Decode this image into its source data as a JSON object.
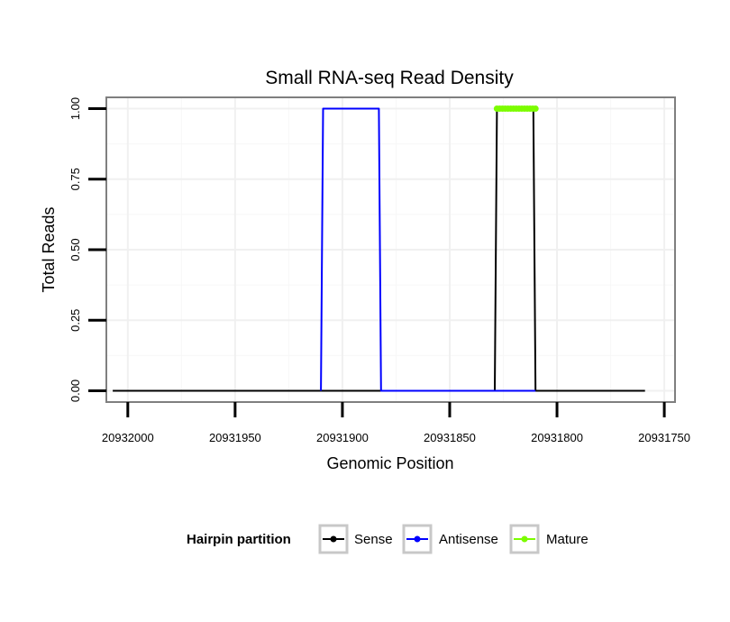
{
  "chart_data": {
    "type": "line",
    "title": "Small RNA-seq Read Density",
    "xlabel": "Genomic Position",
    "ylabel": "Total Reads",
    "x_reversed": true,
    "xlim": [
      20932010,
      20931745
    ],
    "ylim": [
      -0.04,
      1.04
    ],
    "x_ticks": [
      20932000,
      20931950,
      20931900,
      20931850,
      20931800,
      20931750
    ],
    "x_tick_labels": [
      "20932000",
      "20931950",
      "20931900",
      "20931850",
      "20931800",
      "20931750"
    ],
    "y_ticks": [
      0,
      0.25,
      0.5,
      0.75,
      1
    ],
    "y_tick_labels": [
      "0.00",
      "0.25",
      "0.50",
      "0.75",
      "1.00"
    ],
    "grid": true,
    "series": [
      {
        "name": "Sense",
        "color": "#000000",
        "x": [
          20932007,
          20931829,
          20931828,
          20931811,
          20931810,
          20931759
        ],
        "y": [
          0,
          0,
          1,
          1,
          0,
          0
        ]
      },
      {
        "name": "Antisense",
        "color": "#0000ff",
        "x": [
          20931910,
          20931909,
          20931883,
          20931882,
          20931829,
          20931810
        ],
        "y": [
          0,
          1,
          1,
          0,
          0,
          0
        ]
      },
      {
        "name": "Mature",
        "color": "#7cfc00",
        "x": [
          20931828,
          20931810
        ],
        "y": [
          1,
          1
        ]
      }
    ],
    "legend": {
      "title": "Hairpin partition",
      "position": "bottom",
      "entries": [
        {
          "label": "Sense",
          "color": "#000000"
        },
        {
          "label": "Antisense",
          "color": "#0000ff"
        },
        {
          "label": "Mature",
          "color": "#7cfc00"
        }
      ]
    }
  }
}
